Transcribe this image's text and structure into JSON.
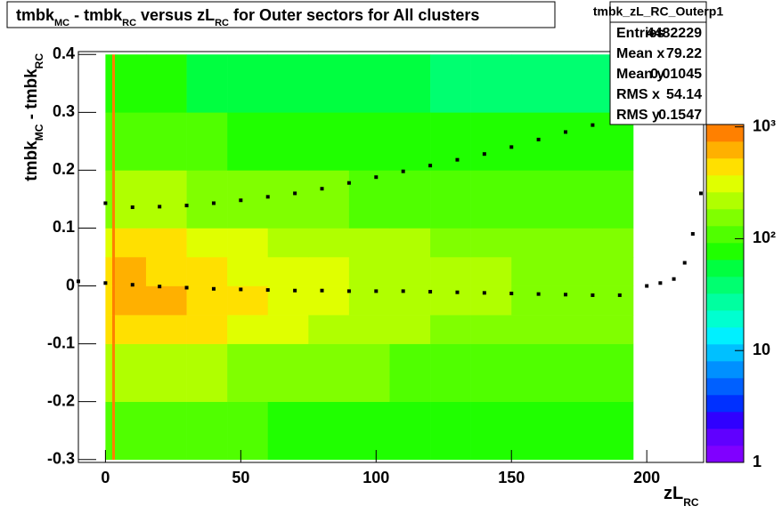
{
  "chart_data": {
    "type": "heatmap",
    "title_parts": [
      {
        "text": "tmbk"
      },
      {
        "text": "MC",
        "sub": true
      },
      {
        "text": "- tmbk"
      },
      {
        "text": "RC",
        "sub": true
      },
      {
        "text": "versus zL"
      },
      {
        "text": "RC",
        "sub": true
      },
      {
        "text": "for Outer sectors for All clusters"
      }
    ],
    "y_label_parts": [
      {
        "text": "tmbk"
      },
      {
        "text": "MC",
        "sub": true
      },
      {
        "text": "- tmbk"
      },
      {
        "text": "RC",
        "sub": true
      }
    ],
    "x_label_parts": [
      {
        "text": "zL"
      },
      {
        "text": "RC",
        "sub": true
      }
    ],
    "xlim": [
      -10,
      221
    ],
    "ylim": [
      -0.305,
      0.405
    ],
    "xticks": [
      0,
      50,
      100,
      150,
      200
    ],
    "yticks": [
      -0.3,
      -0.2,
      -0.1,
      0,
      0.1,
      0.2,
      0.3,
      0.4
    ],
    "zlim": [
      1,
      1050
    ],
    "zlog": true,
    "zticks": [
      1,
      10,
      {
        "value": 100,
        "label": "10²"
      },
      {
        "value": 1000,
        "label": "10³"
      }
    ],
    "palette": [
      "#8000ff",
      "#6000ff",
      "#3000ff",
      "#0030ff",
      "#0060ff",
      "#0090ff",
      "#00c0ff",
      "#00f0ff",
      "#00ffd0",
      "#00ffa0",
      "#00ff70",
      "#00ff40",
      "#20ff00",
      "#50ff00",
      "#80ff00",
      "#b0ff00",
      "#e0ff00",
      "#ffe000",
      "#ffb000",
      "#ff8000"
    ],
    "x_edges": [
      0,
      2.5,
      3.5,
      15,
      30,
      45,
      60,
      75,
      90,
      105,
      120,
      135,
      150,
      165,
      180,
      195
    ],
    "y_edges": [
      -0.3,
      -0.2,
      -0.1,
      -0.05,
      0,
      0.05,
      0.1,
      0.2,
      0.3,
      0.4
    ],
    "z": [
      [
        120,
        2000,
        120,
        110,
        100,
        95,
        90,
        90,
        85,
        85,
        85,
        80,
        80,
        80,
        80
      ],
      [
        200,
        2500,
        250,
        230,
        200,
        180,
        160,
        150,
        140,
        130,
        120,
        115,
        110,
        105,
        100
      ],
      [
        400,
        3000,
        500,
        450,
        380,
        320,
        280,
        250,
        220,
        200,
        180,
        170,
        160,
        150,
        140
      ],
      [
        500,
        3500,
        600,
        550,
        450,
        380,
        330,
        290,
        260,
        230,
        210,
        190,
        180,
        170,
        160
      ],
      [
        450,
        3500,
        550,
        500,
        420,
        360,
        310,
        280,
        250,
        220,
        200,
        185,
        175,
        165,
        155
      ],
      [
        350,
        3000,
        420,
        380,
        330,
        290,
        260,
        230,
        210,
        190,
        175,
        165,
        155,
        150,
        140
      ],
      [
        180,
        2500,
        220,
        200,
        180,
        160,
        150,
        140,
        130,
        120,
        115,
        110,
        105,
        100,
        95
      ],
      [
        110,
        2000,
        110,
        100,
        95,
        90,
        85,
        80,
        80,
        75,
        75,
        70,
        70,
        70,
        65
      ],
      [
        70,
        1500,
        70,
        65,
        60,
        55,
        55,
        50,
        50,
        50,
        45,
        45,
        45,
        45,
        45
      ]
    ],
    "series": [
      {
        "color": "#000000",
        "x": [
          0,
          10,
          20,
          30,
          40,
          50,
          60,
          70,
          80,
          90,
          100,
          110,
          120,
          130,
          140,
          150,
          160,
          170,
          180,
          190
        ],
        "values": [
          0.143,
          0.136,
          0.137,
          0.139,
          0.143,
          0.148,
          0.154,
          0.16,
          0.168,
          0.178,
          0.188,
          0.198,
          0.208,
          0.218,
          0.228,
          0.24,
          0.253,
          0.266,
          0.278,
          0.287
        ]
      },
      {
        "color": "#000000",
        "x": [
          -10,
          0,
          10,
          20,
          30,
          40,
          50,
          60,
          70,
          80,
          90,
          100,
          110,
          120,
          130,
          140,
          150,
          160,
          170,
          180,
          190,
          200,
          205,
          210,
          214,
          217,
          220
        ],
        "values": [
          0.008,
          0.005,
          0.002,
          -0.001,
          -0.003,
          -0.005,
          -0.006,
          -0.007,
          -0.008,
          -0.008,
          -0.009,
          -0.009,
          -0.009,
          -0.01,
          -0.011,
          -0.012,
          -0.013,
          -0.014,
          -0.015,
          -0.016,
          -0.016,
          0,
          0.005,
          0.012,
          0.04,
          0.09,
          0.16
        ]
      }
    ],
    "stats": {
      "title": "tmbk_zL_RC_Outerp1",
      "rows": [
        {
          "label": "Entries",
          "value": 4482229
        },
        {
          "label": "Mean x",
          "value": 79.22
        },
        {
          "label": "Mean y",
          "value": 0.01045
        },
        {
          "label": "RMS x",
          "value": 54.14
        },
        {
          "label": "RMS y",
          "value": 0.1547
        }
      ]
    }
  }
}
